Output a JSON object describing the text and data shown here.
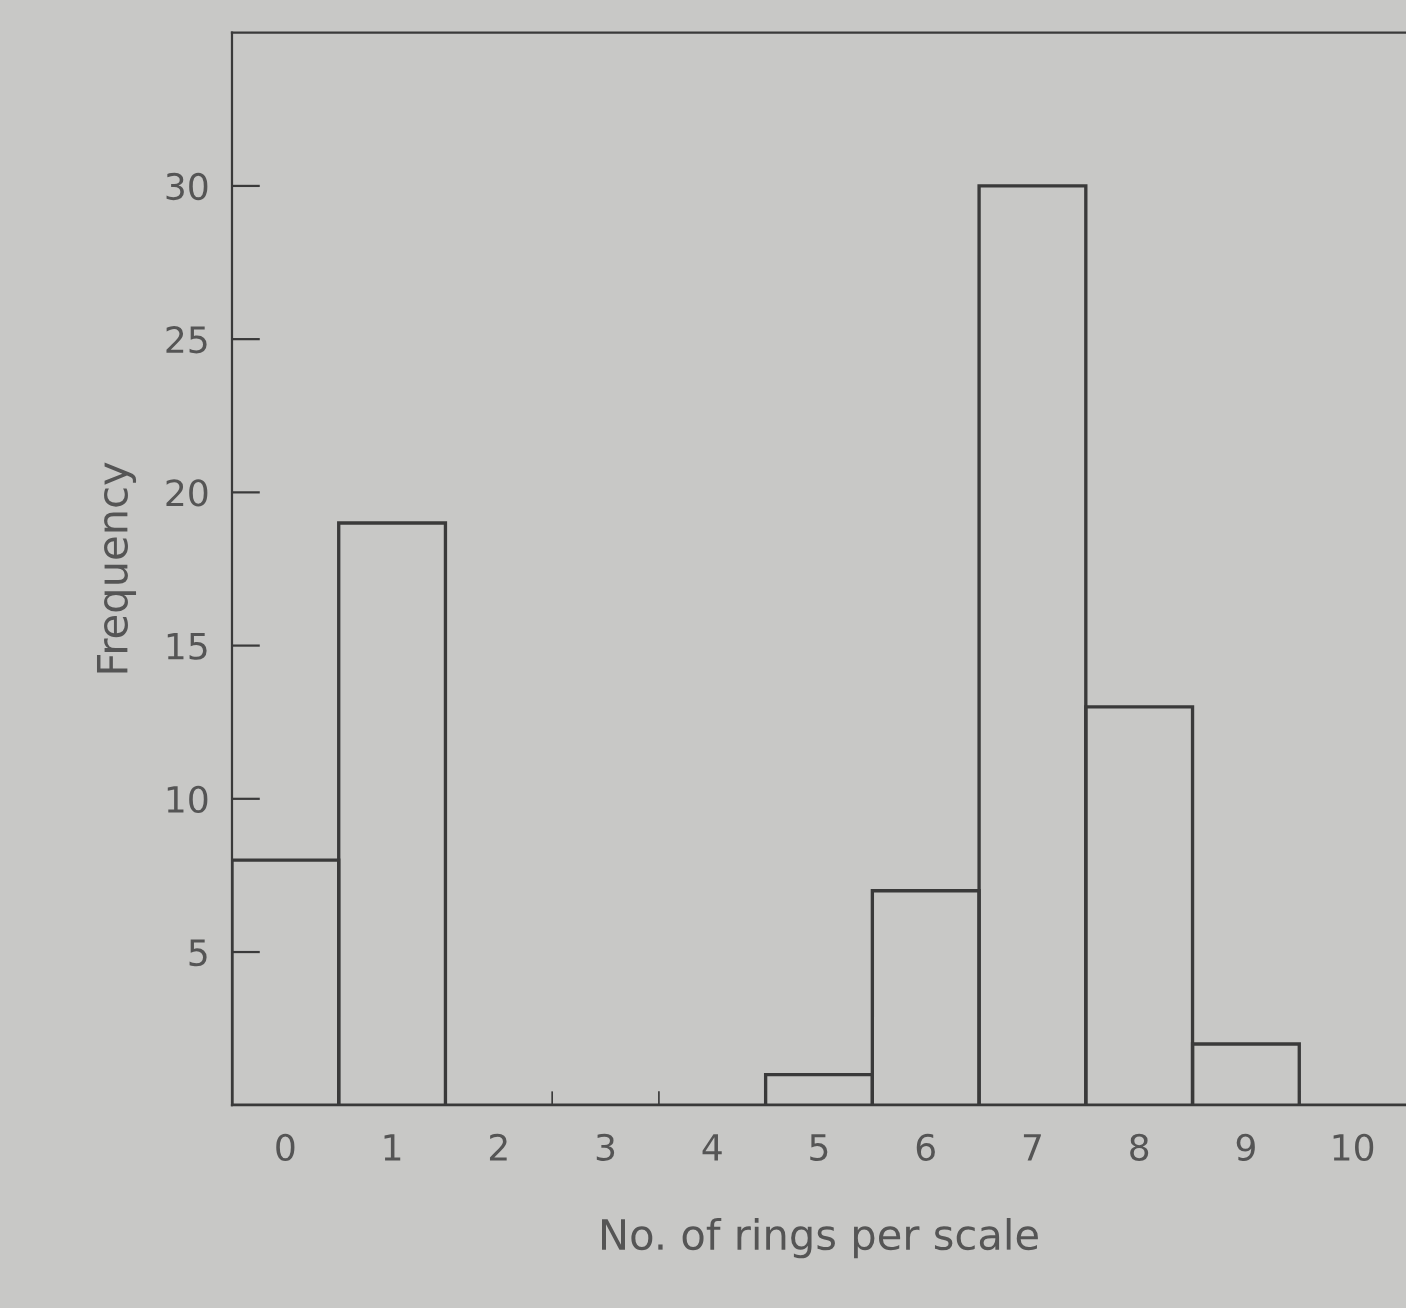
{
  "chart_data": {
    "type": "bar",
    "xlabel": "No. of rings per scale",
    "ylabel": "Frequency",
    "categories": [
      "0",
      "1",
      "2",
      "3",
      "4",
      "5",
      "6",
      "7",
      "8",
      "9",
      "10"
    ],
    "values": [
      8,
      19,
      0,
      0,
      0,
      1,
      7,
      30,
      13,
      2,
      0
    ],
    "color": "#3a3a3a",
    "ylim": [
      0,
      35
    ],
    "yticks": [
      5,
      10,
      15,
      20,
      25,
      30
    ],
    "grid": false
  }
}
